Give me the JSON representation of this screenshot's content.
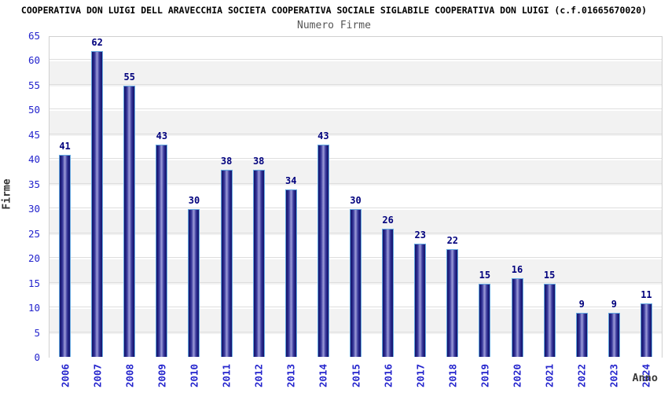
{
  "header": {
    "title": "COOPERATIVA DON LUIGI DELL ARAVECCHIA SOCIETA COOPERATIVA SOCIALE SIGLABILE COOPERATIVA DON LUIGI (c.f.01665670020)",
    "subtitle": "Numero Firme"
  },
  "chart_data": {
    "type": "bar",
    "title": "Numero Firme",
    "xlabel": "Anno",
    "ylabel": "Firme",
    "categories": [
      "2006",
      "2007",
      "2008",
      "2009",
      "2010",
      "2011",
      "2012",
      "2013",
      "2014",
      "2015",
      "2016",
      "2017",
      "2018",
      "2019",
      "2020",
      "2021",
      "2022",
      "2023",
      "2024"
    ],
    "values": [
      41,
      62,
      55,
      43,
      30,
      38,
      38,
      34,
      43,
      30,
      26,
      23,
      22,
      15,
      16,
      15,
      9,
      9,
      11
    ],
    "ylim": [
      0,
      65
    ],
    "ytick_step": 5,
    "grid": true,
    "legend_position": "none",
    "band_colors": [
      "#ffffff",
      "#f2f2f2"
    ],
    "colors": {
      "bar_edge_dark": "#15156b",
      "bar_center_light": "#9c9cd9",
      "bar_outline": "#64a8e0",
      "axis_tick_text": "#2424cd",
      "value_label_text": "#00007d",
      "gridline": "#dedede",
      "plot_border": "#d0d0d0",
      "title_text": "#000000",
      "subtitle_text": "#555555",
      "axis_title_text": "#333333"
    }
  }
}
